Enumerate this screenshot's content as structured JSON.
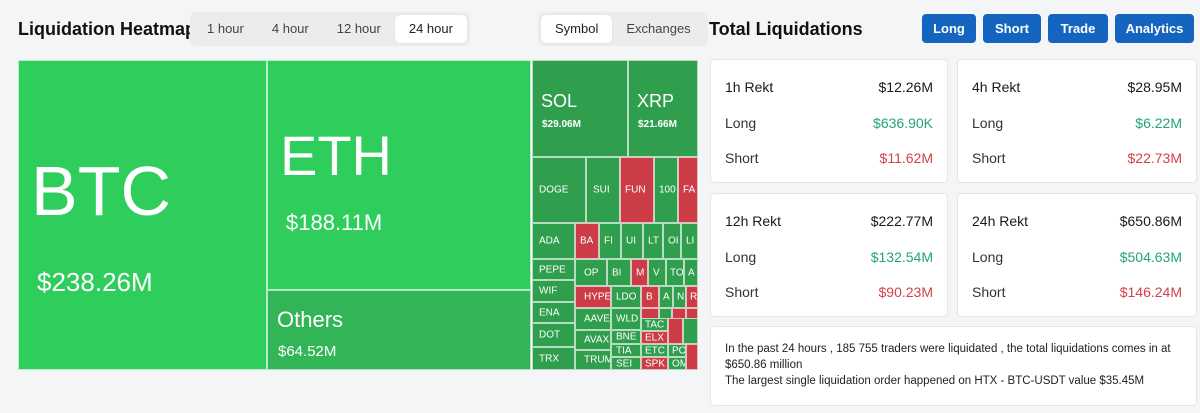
{
  "header": {
    "title": "Liquidation Heatmap",
    "right_title": "Total Liquidations",
    "time_tabs": [
      "1 hour",
      "4 hour",
      "12 hour",
      "24 hour"
    ],
    "active_time_tab": "24 hour",
    "view_tabs": [
      "Symbol",
      "Exchanges"
    ],
    "active_view_tab": "Symbol",
    "action_buttons": [
      "Long",
      "Short",
      "Trade",
      "Analytics"
    ]
  },
  "colors": {
    "bright_green": "#2fcd5c",
    "mid_green": "#31b556",
    "dark_green": "#2f9e4d",
    "red": "#cc3c47",
    "accent_blue": "#1565c0",
    "positive_text": "#23a47a",
    "negative_text": "#d2414b"
  },
  "heatmap": {
    "tiles": [
      {
        "name": "BTC",
        "value": "$238.26M"
      },
      {
        "name": "ETH",
        "value": "$188.11M"
      },
      {
        "name": "Others",
        "value": "$64.52M"
      },
      {
        "name": "SOL",
        "value": "$29.06M"
      },
      {
        "name": "XRP",
        "value": "$21.66M"
      },
      {
        "name": "DOGE"
      },
      {
        "name": "SUI"
      },
      {
        "name": "FUN"
      },
      {
        "name": "100"
      },
      {
        "name": "FA"
      },
      {
        "name": "ADA"
      },
      {
        "name": "BA"
      },
      {
        "name": "FI"
      },
      {
        "name": "UI"
      },
      {
        "name": "LT"
      },
      {
        "name": "OI"
      },
      {
        "name": "LI"
      },
      {
        "name": "PEPE"
      },
      {
        "name": "OP"
      },
      {
        "name": "BI"
      },
      {
        "name": "M"
      },
      {
        "name": "V"
      },
      {
        "name": "TO"
      },
      {
        "name": "A"
      },
      {
        "name": "WIF"
      },
      {
        "name": "HYPE"
      },
      {
        "name": "LDO"
      },
      {
        "name": "B"
      },
      {
        "name": "A"
      },
      {
        "name": "N"
      },
      {
        "name": "R"
      },
      {
        "name": "ENA"
      },
      {
        "name": "AAVE"
      },
      {
        "name": "WLD"
      },
      {
        "name": "DOT"
      },
      {
        "name": "AVAX"
      },
      {
        "name": "BNE"
      },
      {
        "name": "TAC"
      },
      {
        "name": "ELX"
      },
      {
        "name": "TRX"
      },
      {
        "name": "TRUM"
      },
      {
        "name": "TIA"
      },
      {
        "name": "ETC"
      },
      {
        "name": "PO"
      },
      {
        "name": "SEI"
      },
      {
        "name": "SPK"
      },
      {
        "name": "OM"
      }
    ]
  },
  "totals": [
    {
      "period": "1h Rekt",
      "total": "$12.26M",
      "long_label": "Long",
      "long": "$636.90K",
      "short_label": "Short",
      "short": "$11.62M"
    },
    {
      "period": "4h Rekt",
      "total": "$28.95M",
      "long_label": "Long",
      "long": "$6.22M",
      "short_label": "Short",
      "short": "$22.73M"
    },
    {
      "period": "12h Rekt",
      "total": "$222.77M",
      "long_label": "Long",
      "long": "$132.54M",
      "short_label": "Short",
      "short": "$90.23M"
    },
    {
      "period": "24h Rekt",
      "total": "$650.86M",
      "long_label": "Long",
      "long": "$504.63M",
      "short_label": "Short",
      "short": "$146.24M"
    }
  ],
  "summary": {
    "line1": "In the past 24 hours , 185 755 traders were liquidated , the total liquidations comes in at $650.86 million",
    "line2": "The largest single liquidation order happened on HTX - BTC-USDT value $35.45M"
  }
}
